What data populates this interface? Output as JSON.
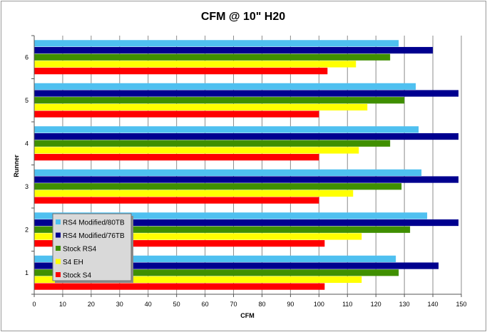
{
  "chart_data": {
    "type": "bar",
    "orientation": "horizontal",
    "title": "CFM @ 10\" H20",
    "xlabel": "CFM",
    "ylabel": "Runner",
    "xlim": [
      0,
      150
    ],
    "xticks": [
      0,
      10,
      20,
      30,
      40,
      50,
      60,
      70,
      80,
      90,
      100,
      110,
      120,
      130,
      140,
      150
    ],
    "grid": "vertical",
    "legend": "bottom-left",
    "categories": [
      "1",
      "2",
      "3",
      "4",
      "5",
      "6"
    ],
    "series": [
      {
        "name": "Stock S4",
        "color": "#ff0000",
        "values": [
          102,
          102,
          100,
          100,
          100,
          103
        ]
      },
      {
        "name": "S4 EH",
        "color": "#ffff00",
        "values": [
          115,
          115,
          112,
          114,
          117,
          113
        ]
      },
      {
        "name": "Stock RS4",
        "color": "#3f8f00",
        "values": [
          128,
          132,
          129,
          125,
          130,
          125
        ]
      },
      {
        "name": "RS4 Modified/76TB",
        "color": "#00008f",
        "values": [
          142,
          149,
          149,
          149,
          149,
          140
        ]
      },
      {
        "name": "RS4 Modified/80TB",
        "color": "#4fc0f0",
        "values": [
          127,
          138,
          136,
          135,
          134,
          128
        ]
      }
    ]
  }
}
